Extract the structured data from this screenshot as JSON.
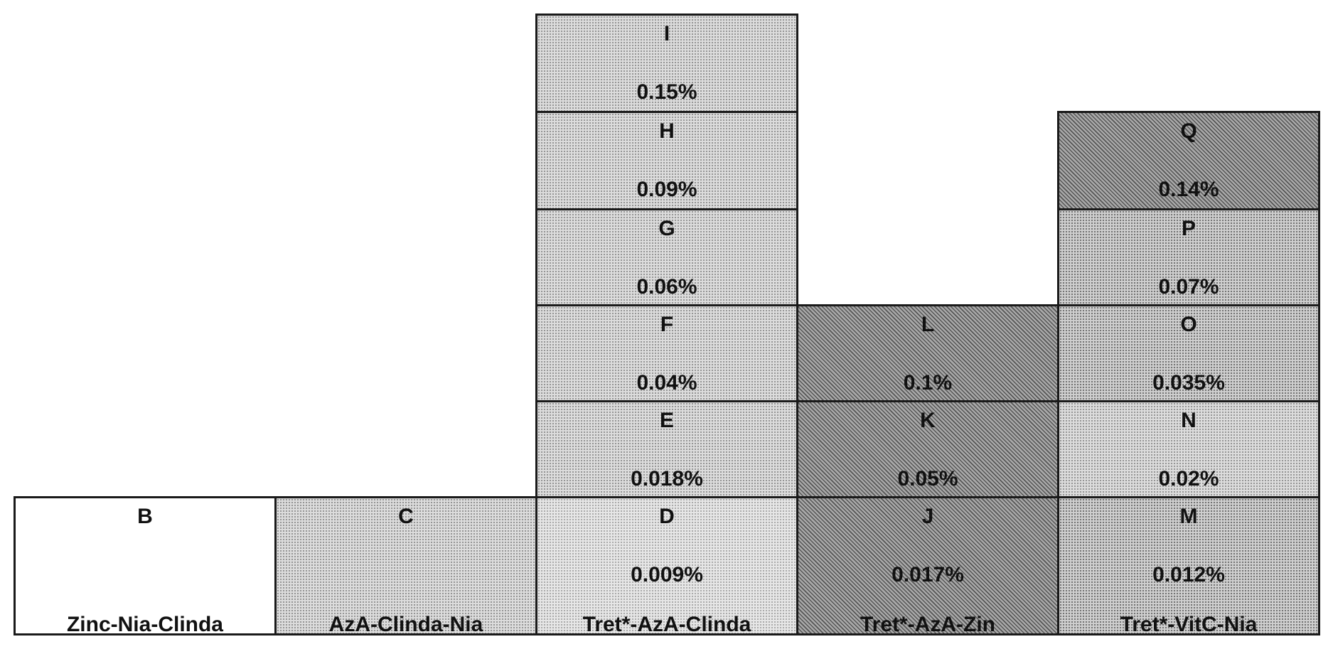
{
  "cells": {
    "B": {
      "letter": "B",
      "value": "",
      "label": "Zinc-Nia-Clinda"
    },
    "C": {
      "letter": "C",
      "value": "",
      "label": "AzA-Clinda-Nia"
    },
    "D": {
      "letter": "D",
      "value": "0.009%",
      "label": "Tret*-AzA-Clinda"
    },
    "E": {
      "letter": "E",
      "value": "0.018%"
    },
    "F": {
      "letter": "F",
      "value": "0.04%"
    },
    "G": {
      "letter": "G",
      "value": "0.06%"
    },
    "H": {
      "letter": "H",
      "value": "0.09%"
    },
    "I": {
      "letter": "I",
      "value": "0.15%"
    },
    "J": {
      "letter": "J",
      "value": "0.017%",
      "label": "Tret*-AzA-Zin"
    },
    "K": {
      "letter": "K",
      "value": "0.05%"
    },
    "L": {
      "letter": "L",
      "value": "0.1%"
    },
    "M": {
      "letter": "M",
      "value": "0.012%",
      "label": "Tret*-VitC-Nia"
    },
    "N": {
      "letter": "N",
      "value": "0.02%"
    },
    "O": {
      "letter": "O",
      "value": "0.035%"
    },
    "P": {
      "letter": "P",
      "value": "0.07%"
    },
    "Q": {
      "letter": "Q",
      "value": "0.14%"
    }
  }
}
